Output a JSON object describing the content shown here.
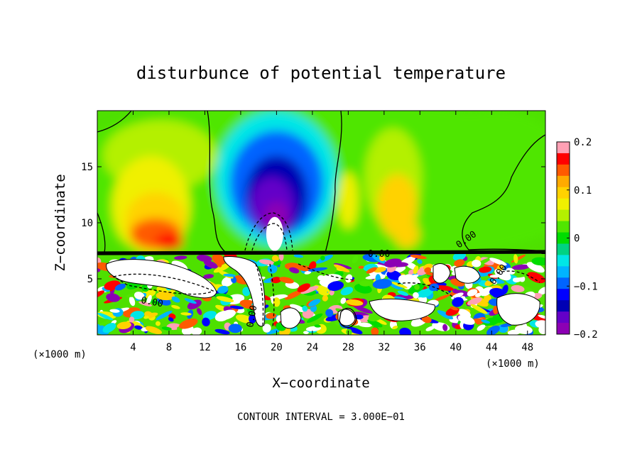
{
  "chart_data": {
    "type": "heatmap",
    "title": "disturbunce of potential temperature",
    "xlabel": "X−coordinate",
    "ylabel": "Z−coordinate",
    "x_unit_left": "(×1000 m)",
    "x_unit_right": "(×1000 m)",
    "xlim": [
      0,
      50
    ],
    "ylim": [
      0,
      20
    ],
    "x_ticks": [
      4,
      8,
      12,
      16,
      20,
      24,
      28,
      32,
      36,
      40,
      44,
      48
    ],
    "x_tick_labels": [
      "4",
      "8",
      "12",
      "16",
      "20",
      "24",
      "28",
      "32",
      "36",
      "40",
      "44",
      "48"
    ],
    "y_ticks": [
      5,
      10,
      15
    ],
    "y_tick_labels": [
      "5",
      "10",
      "15"
    ],
    "colorbar": {
      "min": -0.2,
      "max": 0.2,
      "ticks": [
        0.2,
        0.1,
        0,
        -0.1,
        -0.2
      ],
      "tick_labels": [
        "0.2",
        "0.1",
        "0",
        "−0.1",
        "−0.2"
      ],
      "colors": [
        "#ffa0b4",
        "#ff0000",
        "#ff5a00",
        "#ffaa00",
        "#ffd200",
        "#f0f000",
        "#b4f000",
        "#50e600",
        "#00dc00",
        "#00d282",
        "#00e6e6",
        "#00b4ff",
        "#0064ff",
        "#0000ff",
        "#0000b4",
        "#6400c8",
        "#8c00b4"
      ]
    },
    "contour_labels": [
      "0.00",
      "0.00",
      "0.00",
      "0.00",
      "0.00"
    ],
    "annotation": "CONTOUR INTERVAL = 3.000E−01",
    "boundary_layer_top_z": 7.2,
    "features": [
      {
        "name": "warm-anomaly-left",
        "x": 6,
        "z": 10,
        "value": 0.15
      },
      {
        "name": "cold-anomaly-center",
        "x": 20,
        "z": 13,
        "value": -0.17
      },
      {
        "name": "warm-anomaly-right",
        "x": 33,
        "z": 11,
        "value": 0.1
      }
    ]
  }
}
